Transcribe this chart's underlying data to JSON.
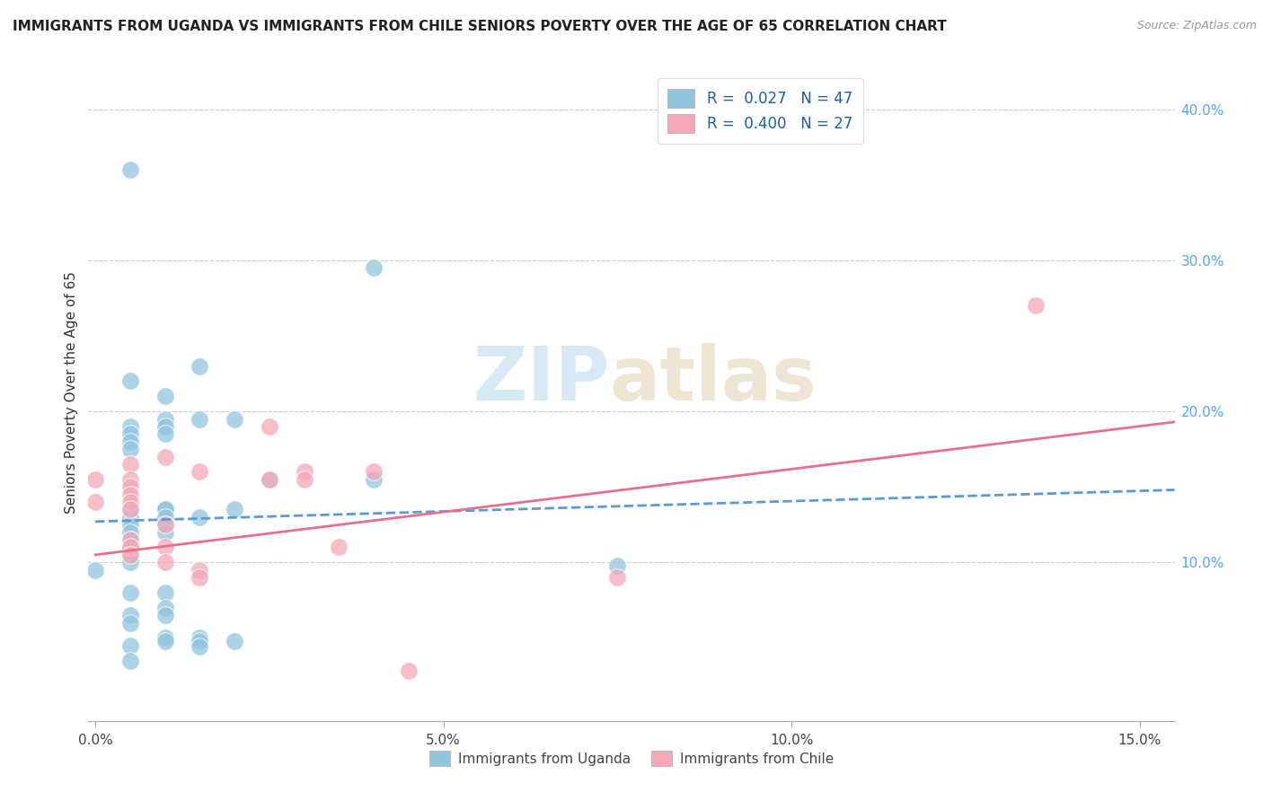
{
  "title": "IMMIGRANTS FROM UGANDA VS IMMIGRANTS FROM CHILE SENIORS POVERTY OVER THE AGE OF 65 CORRELATION CHART",
  "source": "Source: ZipAtlas.com",
  "xlabel_ticks": [
    "0.0%",
    "5.0%",
    "10.0%",
    "15.0%"
  ],
  "xlabel_tick_vals": [
    0.0,
    0.05,
    0.1,
    0.15
  ],
  "ylabel_ticks": [
    "10.0%",
    "20.0%",
    "30.0%",
    "40.0%"
  ],
  "ylabel_tick_vals": [
    0.1,
    0.2,
    0.3,
    0.4
  ],
  "ylabel": "Seniors Poverty Over the Age of 65",
  "xlim": [
    -0.001,
    0.155
  ],
  "ylim": [
    -0.005,
    0.43
  ],
  "watermark_zip": "ZIP",
  "watermark_atlas": "atlas",
  "legend_uganda": "R =  0.027   N = 47",
  "legend_chile": "R =  0.400   N = 27",
  "uganda_color": "#92c5de",
  "chile_color": "#f4a8b8",
  "uganda_line_color": "#5b9bd5",
  "chile_line_color": "#e8708a",
  "bottom_label_uganda": "Immigrants from Uganda",
  "bottom_label_chile": "Immigrants from Chile",
  "uganda_scatter": [
    [
      0.0,
      0.095
    ],
    [
      0.005,
      0.36
    ],
    [
      0.005,
      0.22
    ],
    [
      0.005,
      0.19
    ],
    [
      0.005,
      0.185
    ],
    [
      0.005,
      0.18
    ],
    [
      0.005,
      0.175
    ],
    [
      0.005,
      0.135
    ],
    [
      0.005,
      0.13
    ],
    [
      0.005,
      0.125
    ],
    [
      0.005,
      0.12
    ],
    [
      0.005,
      0.115
    ],
    [
      0.005,
      0.11
    ],
    [
      0.005,
      0.105
    ],
    [
      0.005,
      0.1
    ],
    [
      0.005,
      0.08
    ],
    [
      0.005,
      0.065
    ],
    [
      0.005,
      0.06
    ],
    [
      0.005,
      0.045
    ],
    [
      0.005,
      0.035
    ],
    [
      0.01,
      0.21
    ],
    [
      0.01,
      0.195
    ],
    [
      0.01,
      0.19
    ],
    [
      0.01,
      0.185
    ],
    [
      0.01,
      0.135
    ],
    [
      0.01,
      0.135
    ],
    [
      0.01,
      0.13
    ],
    [
      0.01,
      0.125
    ],
    [
      0.01,
      0.12
    ],
    [
      0.01,
      0.08
    ],
    [
      0.01,
      0.07
    ],
    [
      0.01,
      0.065
    ],
    [
      0.01,
      0.05
    ],
    [
      0.01,
      0.048
    ],
    [
      0.015,
      0.23
    ],
    [
      0.015,
      0.195
    ],
    [
      0.015,
      0.13
    ],
    [
      0.015,
      0.05
    ],
    [
      0.015,
      0.048
    ],
    [
      0.015,
      0.044
    ],
    [
      0.02,
      0.195
    ],
    [
      0.02,
      0.135
    ],
    [
      0.02,
      0.048
    ],
    [
      0.025,
      0.155
    ],
    [
      0.04,
      0.295
    ],
    [
      0.04,
      0.155
    ],
    [
      0.075,
      0.098
    ]
  ],
  "chile_scatter": [
    [
      0.0,
      0.155
    ],
    [
      0.0,
      0.14
    ],
    [
      0.005,
      0.165
    ],
    [
      0.005,
      0.155
    ],
    [
      0.005,
      0.15
    ],
    [
      0.005,
      0.145
    ],
    [
      0.005,
      0.14
    ],
    [
      0.005,
      0.135
    ],
    [
      0.005,
      0.115
    ],
    [
      0.005,
      0.11
    ],
    [
      0.005,
      0.105
    ],
    [
      0.01,
      0.17
    ],
    [
      0.01,
      0.125
    ],
    [
      0.01,
      0.11
    ],
    [
      0.01,
      0.1
    ],
    [
      0.015,
      0.16
    ],
    [
      0.015,
      0.095
    ],
    [
      0.015,
      0.09
    ],
    [
      0.025,
      0.19
    ],
    [
      0.025,
      0.155
    ],
    [
      0.03,
      0.16
    ],
    [
      0.03,
      0.155
    ],
    [
      0.035,
      0.11
    ],
    [
      0.04,
      0.16
    ],
    [
      0.045,
      0.028
    ],
    [
      0.075,
      0.09
    ],
    [
      0.135,
      0.27
    ]
  ],
  "uganda_trendline": [
    [
      0.0,
      0.127
    ],
    [
      0.155,
      0.148
    ]
  ],
  "chile_trendline": [
    [
      0.0,
      0.105
    ],
    [
      0.155,
      0.193
    ]
  ]
}
